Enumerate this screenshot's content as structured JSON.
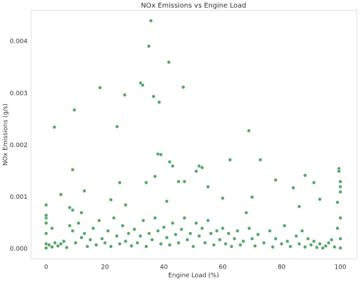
{
  "chart_data": {
    "type": "scatter",
    "title": "NOx Emissions vs Engine Load",
    "x_label": "Engine Load (%)",
    "y_label": "NOx Emissions (g/s)",
    "color": "#55a868",
    "grid": false,
    "xlim": [
      -5.15,
      105.6
    ],
    "ylim": [
      -0.00019,
      0.0046
    ],
    "xticks": [
      0,
      20,
      40,
      60,
      80,
      100
    ],
    "yticks": [
      {
        "value": 0,
        "label": "0.000"
      },
      {
        "value": 0.001,
        "label": "0.001"
      },
      {
        "value": 0.002,
        "label": "0.002"
      },
      {
        "value": 0.003,
        "label": "0.003"
      },
      {
        "value": 0.004,
        "label": "0.004"
      }
    ],
    "x": [
      2.8,
      9.6,
      18.3,
      24.1,
      26.7,
      32.1,
      32.8,
      34.9,
      35.6,
      36.5,
      38.4,
      41.7,
      46.6,
      68.9,
      38,
      39,
      42,
      43,
      52,
      53,
      51,
      62.5,
      72.8,
      99.5,
      99.5,
      100,
      100,
      100,
      9,
      5,
      13,
      22,
      25,
      27,
      34,
      37,
      45,
      41,
      47,
      55,
      60,
      70,
      78,
      84,
      88,
      91,
      93,
      86,
      0,
      0,
      0,
      99,
      0,
      0,
      0,
      0,
      1,
      2,
      2,
      3,
      4,
      5,
      6,
      7,
      8,
      8,
      9,
      9,
      10,
      11,
      12,
      12,
      13,
      14,
      15,
      16,
      17,
      18,
      19,
      20,
      21,
      22,
      23,
      24,
      25,
      26,
      27,
      28,
      29,
      30,
      31,
      32,
      33,
      34,
      35,
      36,
      37,
      38,
      39,
      40,
      41,
      42,
      43,
      44,
      45,
      46,
      47,
      48,
      49,
      50,
      51,
      52,
      53,
      54,
      55,
      56,
      57,
      58,
      59,
      60,
      61,
      62,
      63,
      64,
      65,
      66,
      67,
      68,
      69,
      70,
      71,
      72,
      74,
      76,
      77,
      78,
      80,
      81,
      82,
      83,
      85,
      86,
      87,
      88,
      89,
      90,
      91,
      92,
      93,
      94,
      95,
      96,
      97,
      98,
      99,
      100,
      100,
      100
    ],
    "values": [
      0.00235,
      0.00268,
      0.00311,
      0.00236,
      0.00297,
      0.0032,
      0.00316,
      0.00391,
      0.0044,
      0.00294,
      0.00283,
      0.0036,
      0.00312,
      0.00228,
      0.00183,
      0.00182,
      0.00168,
      0.0016,
      0.0016,
      0.00157,
      0.0015,
      0.00172,
      0.00172,
      0.00155,
      0.0015,
      0.0013,
      0.0012,
      0.0011,
      0.00153,
      0.00105,
      0.00112,
      0.00095,
      0.00128,
      0.00085,
      0.00128,
      0.0014,
      0.0013,
      0.00092,
      0.0013,
      0.0012,
      0.00098,
      0.001,
      0.00133,
      0.00118,
      0.00142,
      0.00128,
      0.00096,
      0.00082,
      0.00085,
      0.0006,
      0.00065,
      0.0009,
      0.0005,
      0.0003,
      0.0001,
      2e-05,
      8e-05,
      4e-05,
      0.0004,
      0.00012,
      6e-05,
      0.0001,
      0.00015,
      3e-05,
      0.0008,
      0.00045,
      0.00075,
      0.00035,
      0.00012,
      0.0005,
      0.0007,
      0.00022,
      0.0003,
      5e-05,
      0.00018,
      0.0004,
      8e-05,
      0.00055,
      0.0002,
      0.00012,
      0.00035,
      5e-05,
      0.0006,
      0.00025,
      0.0001,
      0.00045,
      0.00015,
      0.0003,
      6e-05,
      0.00038,
      0.00012,
      0.00025,
      0.00055,
      5e-05,
      0.0003,
      0.00018,
      0.0006,
      0.00035,
      0.0001,
      0.00042,
      0.00022,
      8e-05,
      0.0005,
      0.00028,
      0.00012,
      0.00038,
      0.0006,
      0.00018,
      0.0003,
      5e-05,
      0.0005,
      0.00025,
      0.0004,
      0.00012,
      0.00055,
      0.0003,
      8e-05,
      0.00035,
      0.00018,
      0.0004,
      0.0001,
      0.0003,
      5e-05,
      0.0002,
      0.00035,
      8e-05,
      0.00015,
      0.0007,
      0.0004,
      0.0002,
      6e-05,
      0.00028,
      0.00012,
      0.00035,
      4e-05,
      0.0002,
      0.0001,
      0.00045,
      0.00015,
      5e-05,
      0.00025,
      0.0001,
      0.00035,
      4e-05,
      0.0002,
      8e-05,
      0.00015,
      3e-05,
      0.0001,
      2e-05,
      6e-05,
      0.00012,
      0.00018,
      4e-05,
      0.0004,
      0.0006,
      0.0002,
      2e-05
    ]
  }
}
